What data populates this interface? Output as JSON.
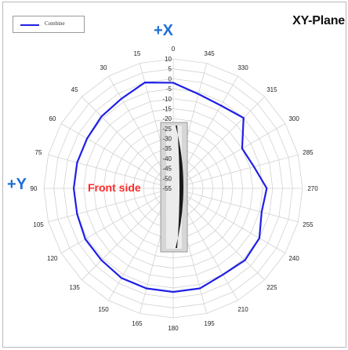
{
  "chart_data": {
    "type": "radar",
    "title": "XY-Plane",
    "angle_labels": [
      "0",
      "345",
      "330",
      "315",
      "300",
      "285",
      "270",
      "255",
      "240",
      "225",
      "210",
      "195",
      "180",
      "165",
      "150",
      "135",
      "120",
      "105",
      "90",
      "75",
      "60",
      "45",
      "30",
      "15"
    ],
    "angle_values": [
      0,
      345,
      330,
      315,
      300,
      285,
      270,
      255,
      240,
      225,
      210,
      195,
      180,
      165,
      150,
      135,
      120,
      105,
      90,
      75,
      60,
      45,
      30,
      15
    ],
    "radial_labels": [
      "10",
      "5",
      "0",
      "-5",
      "-10",
      "-15",
      "-20",
      "-25",
      "-30",
      "-35",
      "-40",
      "-45",
      "-50",
      "-55"
    ],
    "rlim": [
      -55,
      10
    ],
    "rtick_step": 5,
    "direction": "counterclockwise",
    "zero_at": "top",
    "grid": true,
    "legend": {
      "position": "top-left",
      "entries": [
        "Combine"
      ]
    },
    "series": [
      {
        "name": "Combine",
        "color": "#1f1fe6",
        "angles": [
          0,
          15,
          30,
          45,
          60,
          75,
          90,
          105,
          120,
          135,
          150,
          165,
          180,
          195,
          210,
          225,
          240,
          255,
          270,
          285,
          300,
          315,
          330,
          345
        ],
        "values": [
          -2,
          0,
          -3,
          -4,
          -5,
          -5,
          -5,
          -5,
          -4,
          -4,
          -3,
          -3,
          -3,
          -3,
          -5,
          -4,
          -5,
          -9,
          -8,
          -13,
          -15,
          -5,
          -7,
          -6
        ]
      }
    ]
  },
  "annotations": {
    "x_axis": "+X",
    "y_axis": "+Y",
    "front": "Front side"
  },
  "colors": {
    "axis_label": "#1f6fd6",
    "front_label": "#ff2a2a",
    "grid": "#d2d2d2",
    "series": "#1f1fe6"
  }
}
